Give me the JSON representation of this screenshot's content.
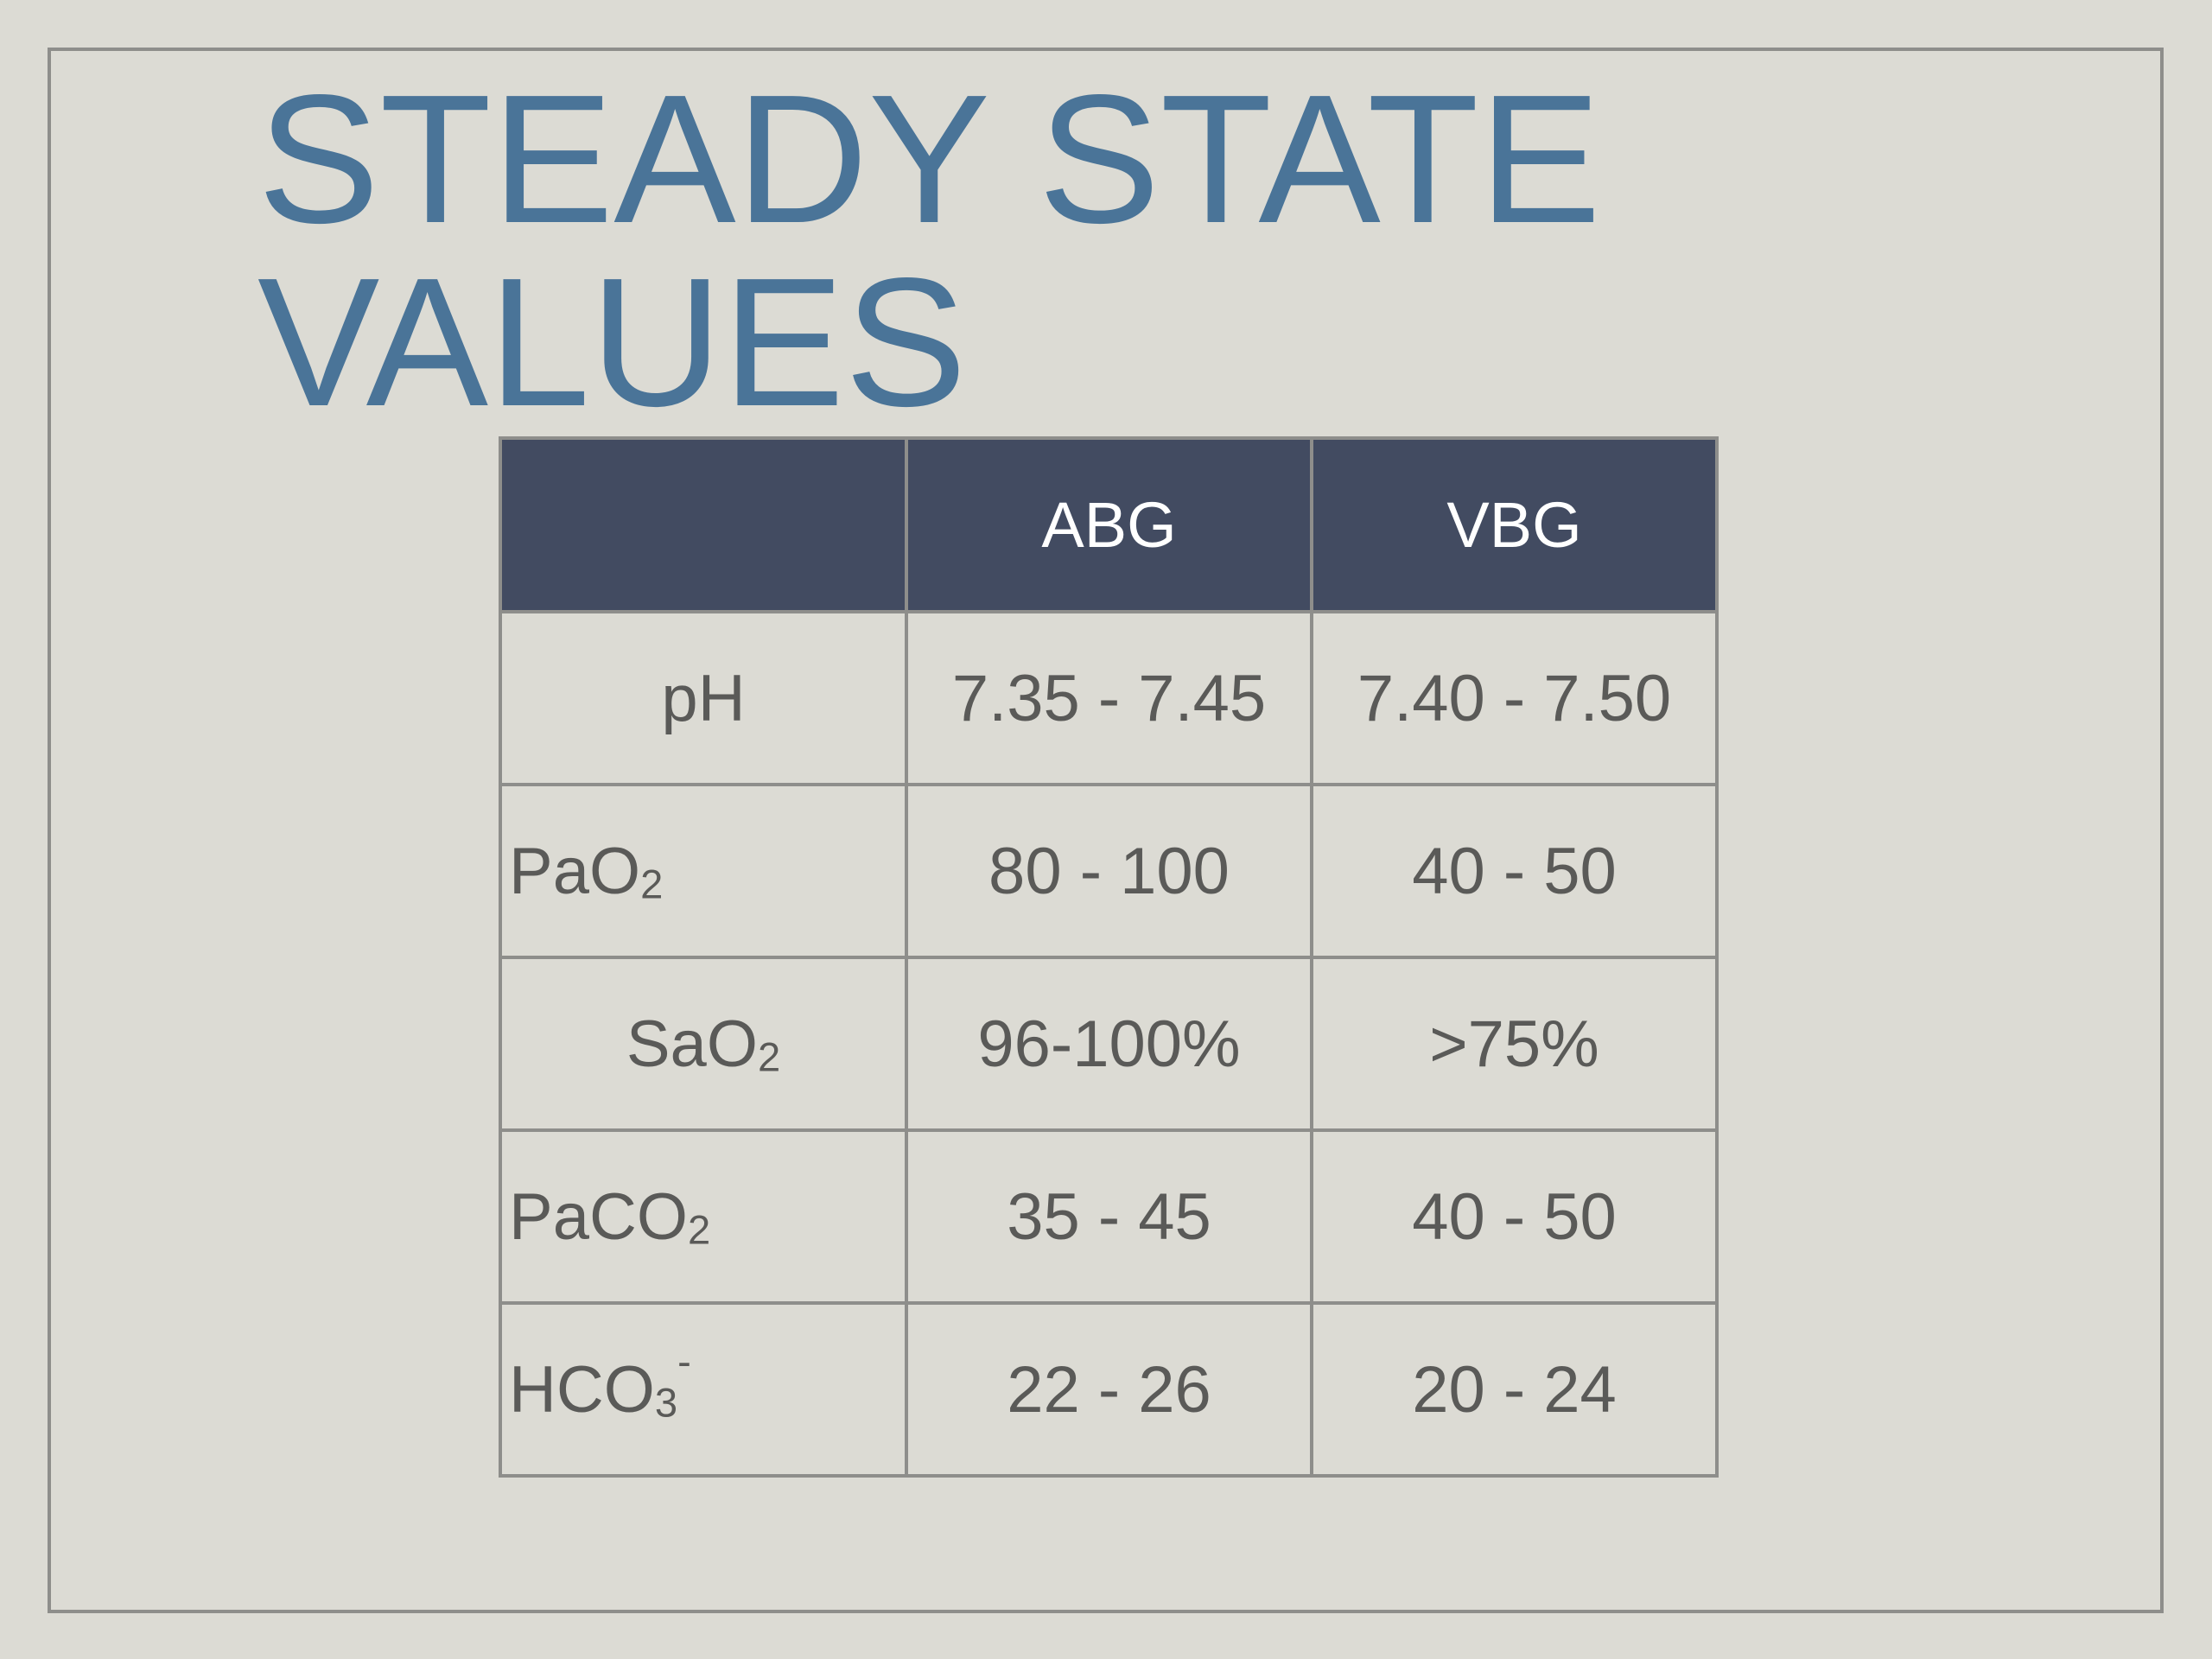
{
  "slide": {
    "title_line1": "STEADY STATE",
    "title_line2": "VALUES"
  },
  "table": {
    "headers": [
      "",
      "ABG",
      "VBG"
    ],
    "rows": [
      {
        "param_base": "pH",
        "param_sub": "",
        "param_sup": "",
        "abg": "7.35 - 7.45",
        "vbg": "7.40 - 7.50"
      },
      {
        "param_base": "PaO",
        "param_sub": "2",
        "param_sup": "",
        "abg": "80 - 100",
        "vbg": "40 - 50"
      },
      {
        "param_base": "SaO",
        "param_sub": "2",
        "param_sup": "",
        "abg": "96-100%",
        "vbg": ">75%"
      },
      {
        "param_base": "PaCO",
        "param_sub": "2",
        "param_sup": "",
        "abg": "35 - 45",
        "vbg": "40 - 50"
      },
      {
        "param_base": "HCO",
        "param_sub": "3",
        "param_sup": "-",
        "abg": "22 - 26",
        "vbg": "20 - 24"
      }
    ]
  },
  "colors": {
    "background": "#dcdbd4",
    "title": "#4a7498",
    "header_bg": "#424b61",
    "header_text": "#ffffff",
    "cell_text": "#5a5a58",
    "border": "#8e8e8b"
  }
}
